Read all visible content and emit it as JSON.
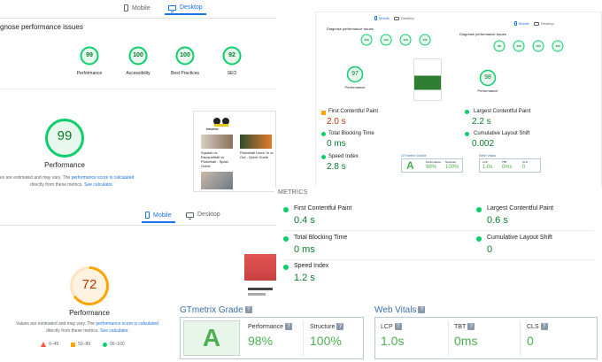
{
  "desktop_panel": {
    "tabs": {
      "mobile": "Mobile",
      "desktop": "Desktop"
    },
    "heading": "gnose performance issues",
    "scores": [
      {
        "value": "99",
        "label": "Performance"
      },
      {
        "value": "100",
        "label": "Accessibility"
      },
      {
        "value": "100",
        "label": "Best Practices"
      },
      {
        "value": "92",
        "label": "SEO"
      }
    ],
    "main_score": "99",
    "main_label": "Performance",
    "note_line1": "es are estimated and may vary. The",
    "note_link": "performance score is calculated",
    "note_line2": "directly from these metrics.",
    "note_link2": "See calculator.",
    "thumb": {
      "logo": "PIKAPOD",
      "card1": "Squash vs Racquetball vs Pickleball - Spaid Guide",
      "card2": "Pickleball Lines: In or Out - Quick Guide"
    }
  },
  "mobile_panel": {
    "tabs": {
      "mobile": "Mobile",
      "desktop": "Desktop"
    },
    "main_score": "72",
    "main_label": "Performance",
    "note_line1": "Values are estimated and may vary. The",
    "note_link": "performance score is calculated",
    "note_line2": "directly from these metrics.",
    "note_link2": "See calculator.",
    "legend": [
      {
        "shape": "triangle",
        "range": "0–49"
      },
      {
        "shape": "square",
        "range": "50–89"
      },
      {
        "shape": "circle",
        "range": "90–100"
      }
    ]
  },
  "mini_panel": {
    "tabs": {
      "mobile": "Mobile",
      "desktop": "Desktop"
    },
    "heading": "Diagnose performance issues",
    "scores_left": [
      "100",
      "100",
      "100",
      "100"
    ],
    "scores_right": [
      "98",
      "100",
      "100",
      "100"
    ],
    "score_left": "97",
    "score_right": "98",
    "score_label": "Performance",
    "metrics": [
      {
        "name": "First Contentful Paint",
        "value": "2.0 s",
        "status": "average"
      },
      {
        "name": "Largest Contentful Paint",
        "value": "2.2 s",
        "status": "good"
      },
      {
        "name": "Total Blocking Time",
        "value": "0 ms",
        "status": "good"
      },
      {
        "name": "Cumulative Layout Shift",
        "value": "0.002",
        "status": "good"
      },
      {
        "name": "Speed Index",
        "value": "2.8 s",
        "status": "good"
      }
    ],
    "gt": {
      "title": "GTmetrix Grade",
      "grade": "A",
      "performance": "98%",
      "structure": "100%",
      "perf_label": "Performance",
      "struct_label": "Structure"
    },
    "wv": {
      "title": "Web Vitals",
      "lcp_label": "LCP",
      "lcp": "1.0s",
      "tbt_label": "TBT",
      "tbt": "0ms",
      "cls_label": "CLS",
      "cls": "0"
    }
  },
  "metrics_panel": {
    "heading": "METRICS",
    "metrics": [
      {
        "name": "First Contentful Paint",
        "value": "0.4 s"
      },
      {
        "name": "Largest Contentful Paint",
        "value": "0.6 s"
      },
      {
        "name": "Total Blocking Time",
        "value": "0 ms"
      },
      {
        "name": "Cumulative Layout Shift",
        "value": "0"
      },
      {
        "name": "Speed Index",
        "value": "1.2 s"
      }
    ]
  },
  "gtmetrix": {
    "grade_title": "GTmetrix Grade",
    "grade": "A",
    "performance_label": "Performance",
    "performance": "98%",
    "structure_label": "Structure",
    "structure": "100%",
    "vitals_title": "Web Vitals",
    "lcp_label": "LCP",
    "lcp": "1.0s",
    "tbt_label": "TBT",
    "tbt": "0ms",
    "cls_label": "CLS",
    "cls": "0"
  },
  "colors": {
    "good": "#0cce6b",
    "average": "#ffa400",
    "poor": "#ff4e42",
    "accent": "#1a73e8",
    "gt_green": "#4caf50"
  }
}
